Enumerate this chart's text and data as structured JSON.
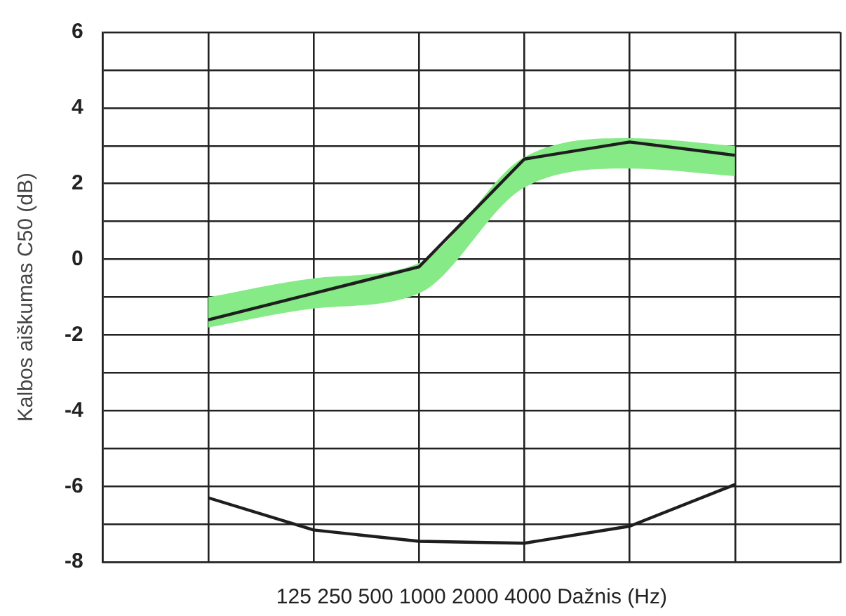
{
  "chart_data": {
    "type": "line",
    "xlabel": "125 250 500 1000 2000 4000 Dažnis (Hz)",
    "ylabel": "Kalbos aiškumas C50 (dB)",
    "categories": [
      null,
      null,
      null,
      null,
      null,
      null
    ],
    "series": [
      {
        "color": "#1e1e1e",
        "values": [
          -1.6,
          -0.9,
          -0.2,
          2.65,
          3.1,
          2.75
        ],
        "lower": [
          -1.8,
          -1.3,
          -0.9,
          1.9,
          2.4,
          2.2
        ],
        "upper": [
          -1.0,
          -0.5,
          -0.1,
          2.7,
          3.2,
          3.0
        ]
      },
      {
        "color": "#1e1e1e",
        "values": [
          -6.3,
          -7.15,
          -7.45,
          -7.5,
          -7.05,
          -5.95
        ]
      }
    ],
    "ylim": [
      -8,
      6
    ],
    "yticks": [
      -8,
      {
        "value": -7,
        "label": null
      },
      -6,
      {
        "value": -5,
        "label": null
      },
      -4,
      {
        "value": -3,
        "label": null
      },
      -2,
      {
        "value": -1,
        "label": null
      },
      0,
      {
        "value": 1,
        "label": null
      },
      2,
      {
        "value": 3,
        "label": null
      },
      4,
      {
        "value": 5,
        "label": null
      },
      6
    ],
    "grid": true,
    "legend": false,
    "marker": "none",
    "line_style": "solid"
  }
}
